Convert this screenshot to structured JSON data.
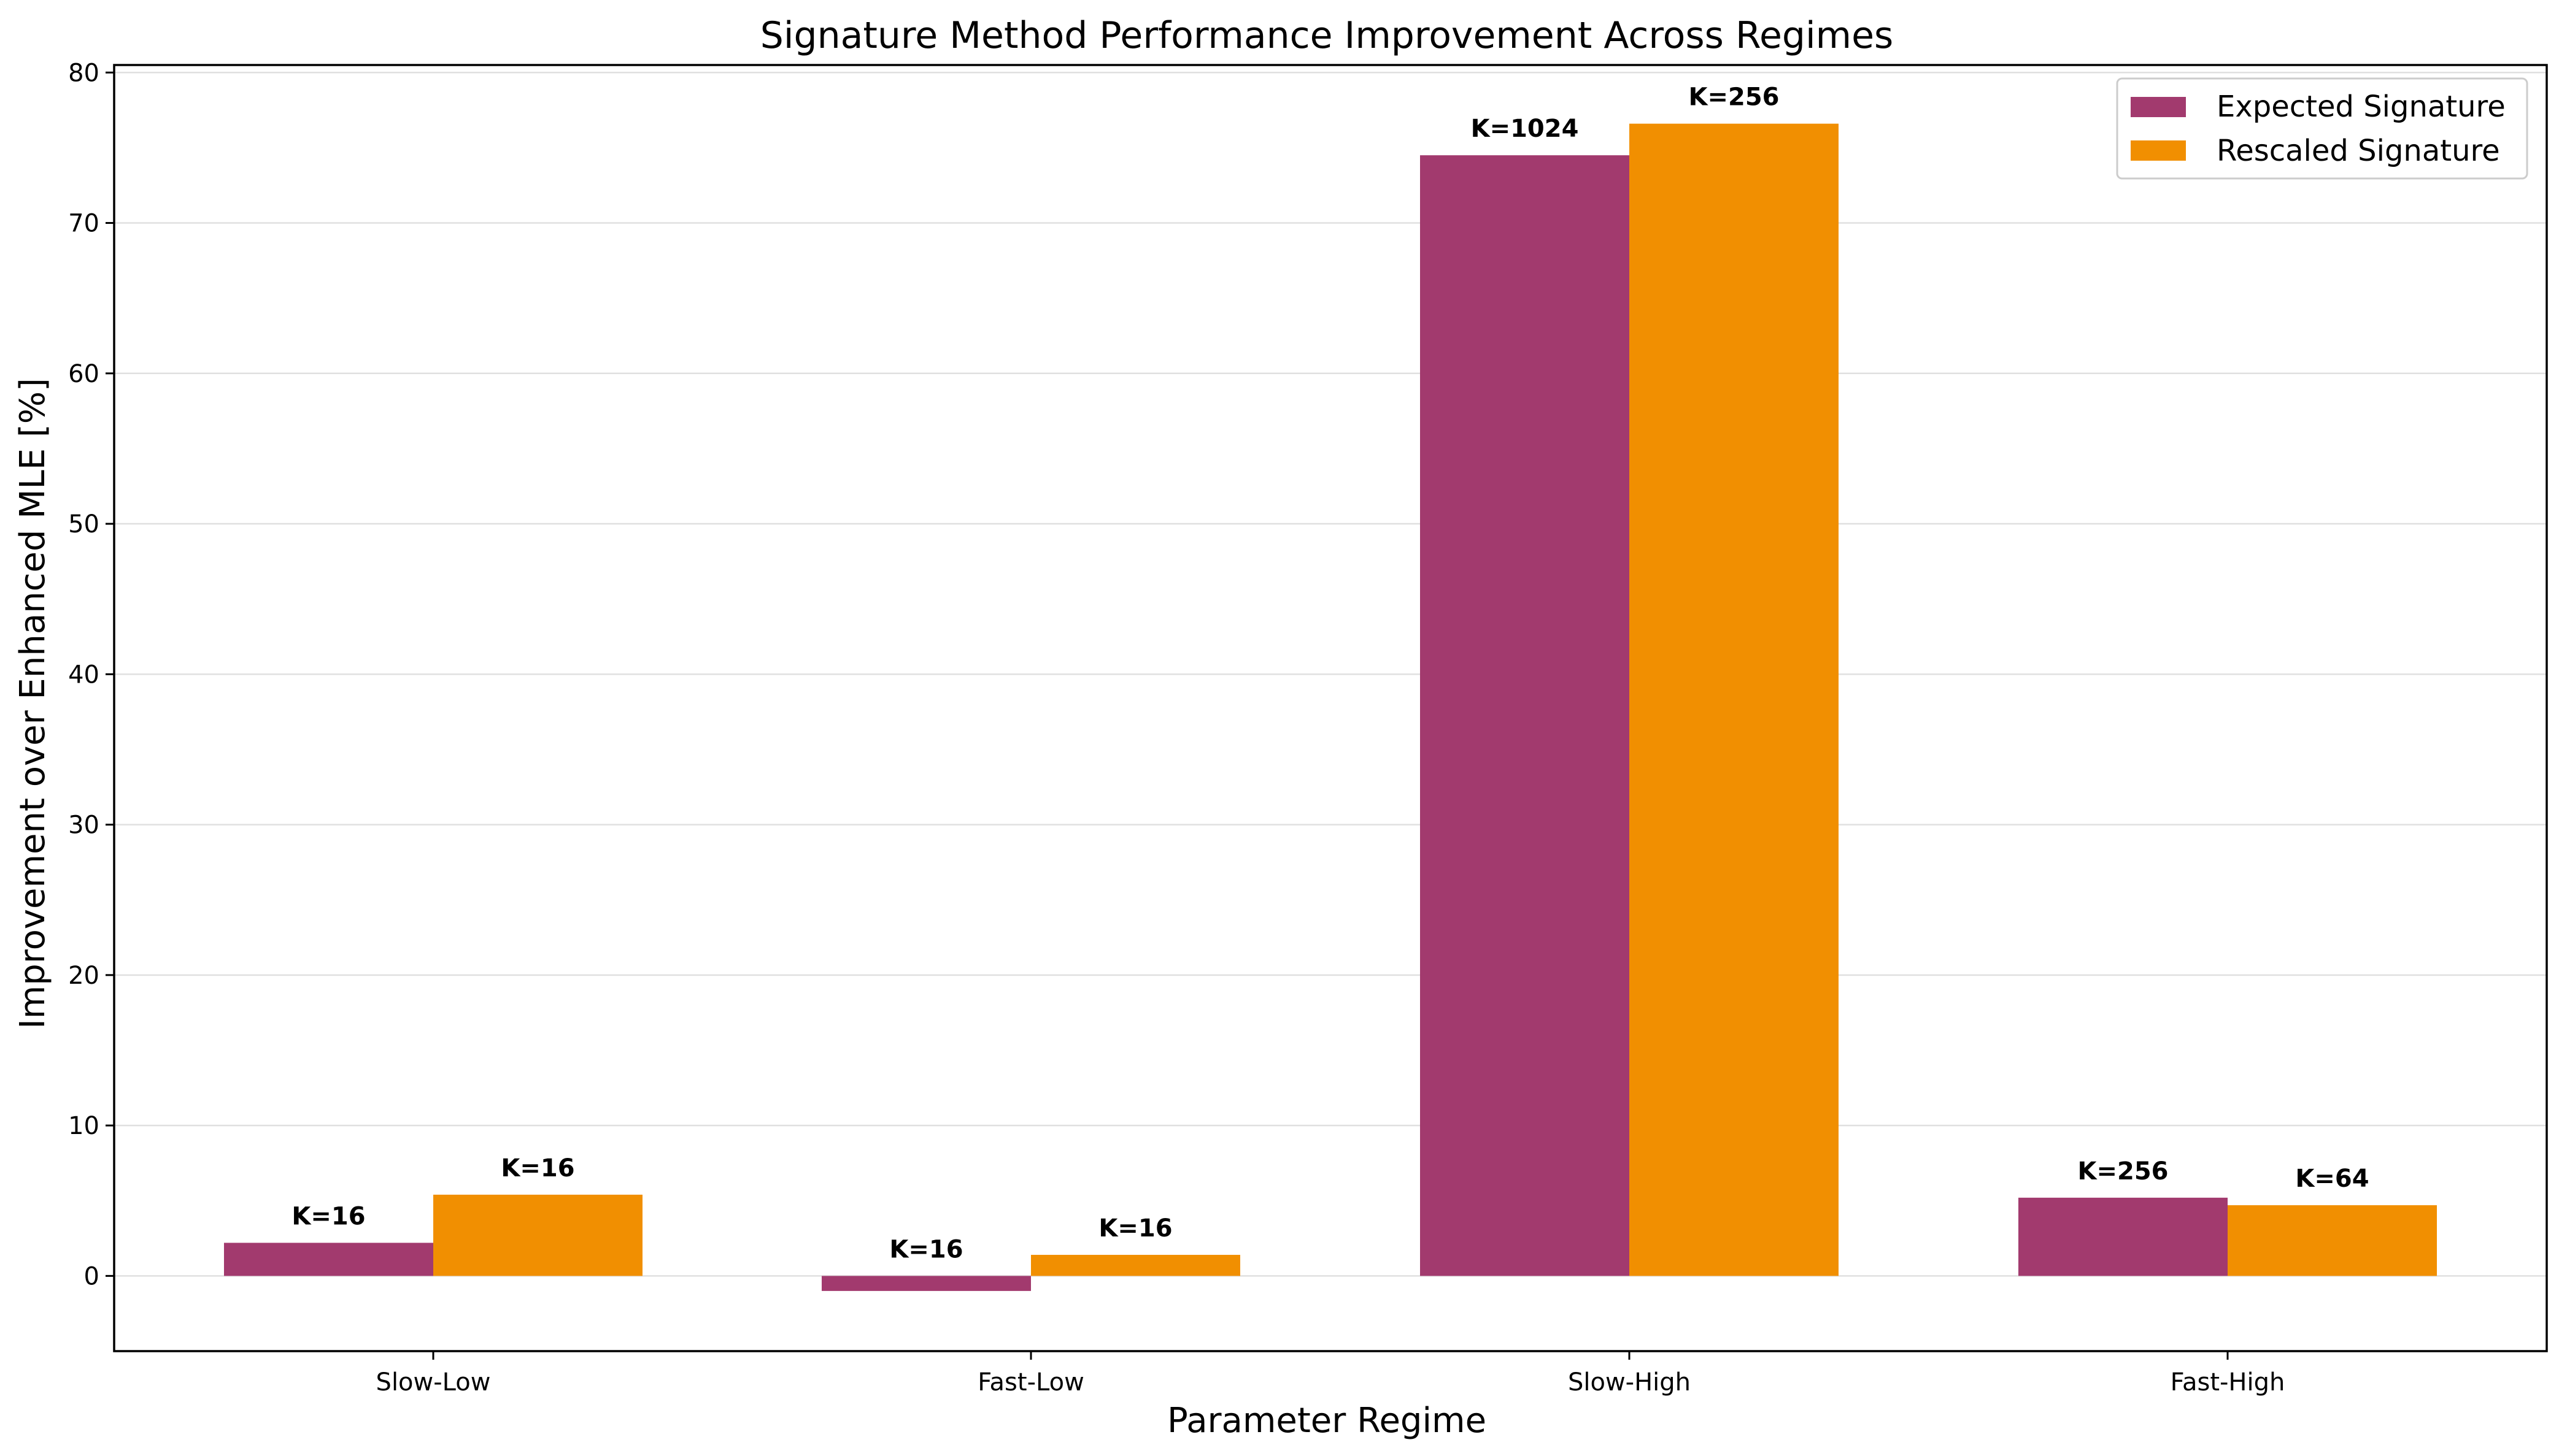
{
  "chart_data": {
    "type": "bar",
    "title": "Signature Method Performance Improvement Across Regimes",
    "xlabel": "Parameter Regime",
    "ylabel": "Improvement over Enhanced MLE [%]",
    "categories": [
      "Slow-Low",
      "Fast-Low",
      "Slow-High",
      "Fast-High"
    ],
    "ylim": [
      -5,
      80.5
    ],
    "yticks": [
      0,
      10,
      20,
      30,
      40,
      50,
      60,
      70,
      80
    ],
    "grid": "y",
    "legend_position": "top-right",
    "series": [
      {
        "name": "Expected Signature",
        "color": "#a23a6e",
        "values": [
          2.2,
          -1.0,
          74.5,
          5.2
        ],
        "labels": [
          "K=16",
          "K=16",
          "K=1024",
          "K=256"
        ]
      },
      {
        "name": "Rescaled Signature",
        "color": "#f18f01",
        "values": [
          5.4,
          1.4,
          76.6,
          4.7
        ],
        "labels": [
          "K=16",
          "K=16",
          "K=256",
          "K=64"
        ]
      }
    ]
  }
}
